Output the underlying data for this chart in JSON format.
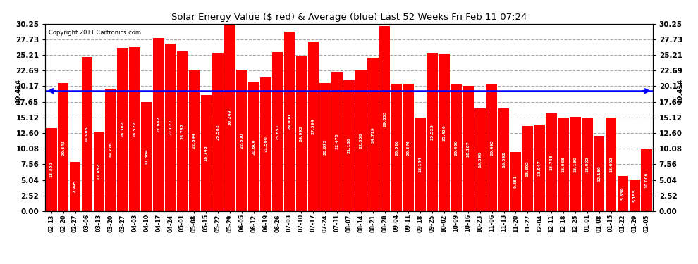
{
  "title": "Solar Energy Value ($ red) & Average (blue) Last 52 Weeks Fri Feb 11 07:24",
  "copyright": "Copyright 2011 Cartronics.com",
  "average": 19.414,
  "bar_color": "#FF0000",
  "avg_line_color": "#0000FF",
  "background_color": "#FFFFFF",
  "plot_bg_color": "#FFFFFF",
  "grid_color": "#AAAAAA",
  "ylim": [
    0,
    30.25
  ],
  "yticks": [
    0.0,
    2.52,
    5.04,
    7.56,
    10.08,
    12.6,
    15.12,
    17.65,
    20.17,
    22.69,
    25.21,
    27.73,
    30.25
  ],
  "categories": [
    "02-13",
    "02-20",
    "02-27",
    "03-06",
    "03-13",
    "03-20",
    "03-27",
    "04-03",
    "04-10",
    "04-17",
    "04-24",
    "05-01",
    "05-08",
    "05-15",
    "05-22",
    "05-29",
    "06-05",
    "06-12",
    "06-19",
    "06-26",
    "07-03",
    "07-10",
    "07-17",
    "07-24",
    "07-31",
    "08-07",
    "08-14",
    "08-21",
    "08-28",
    "09-04",
    "09-11",
    "09-18",
    "09-25",
    "10-02",
    "10-09",
    "10-16",
    "10-23",
    "11-06",
    "11-13",
    "11-20",
    "11-27",
    "12-04",
    "12-11",
    "12-18",
    "12-25",
    "01-01",
    "01-08",
    "01-15",
    "01-22",
    "01-29",
    "02-05"
  ],
  "values": [
    13.39,
    20.643,
    7.995,
    24.906,
    12.882,
    19.776,
    26.367,
    26.527,
    17.664,
    27.942,
    27.027,
    25.782,
    22.844,
    18.743,
    25.582,
    30.249,
    22.8,
    20.8,
    21.56,
    25.651,
    29.0,
    24.993,
    27.394,
    20.672,
    22.47,
    21.18,
    22.858,
    24.719,
    29.835,
    20.526,
    20.576,
    15.144,
    25.525,
    25.426,
    20.45,
    20.187,
    16.59,
    20.495,
    16.592,
    9.581,
    13.692,
    13.947,
    15.748,
    15.058,
    15.18,
    15.002,
    12.18,
    15.092,
    5.639,
    5.155,
    10.006
  ]
}
